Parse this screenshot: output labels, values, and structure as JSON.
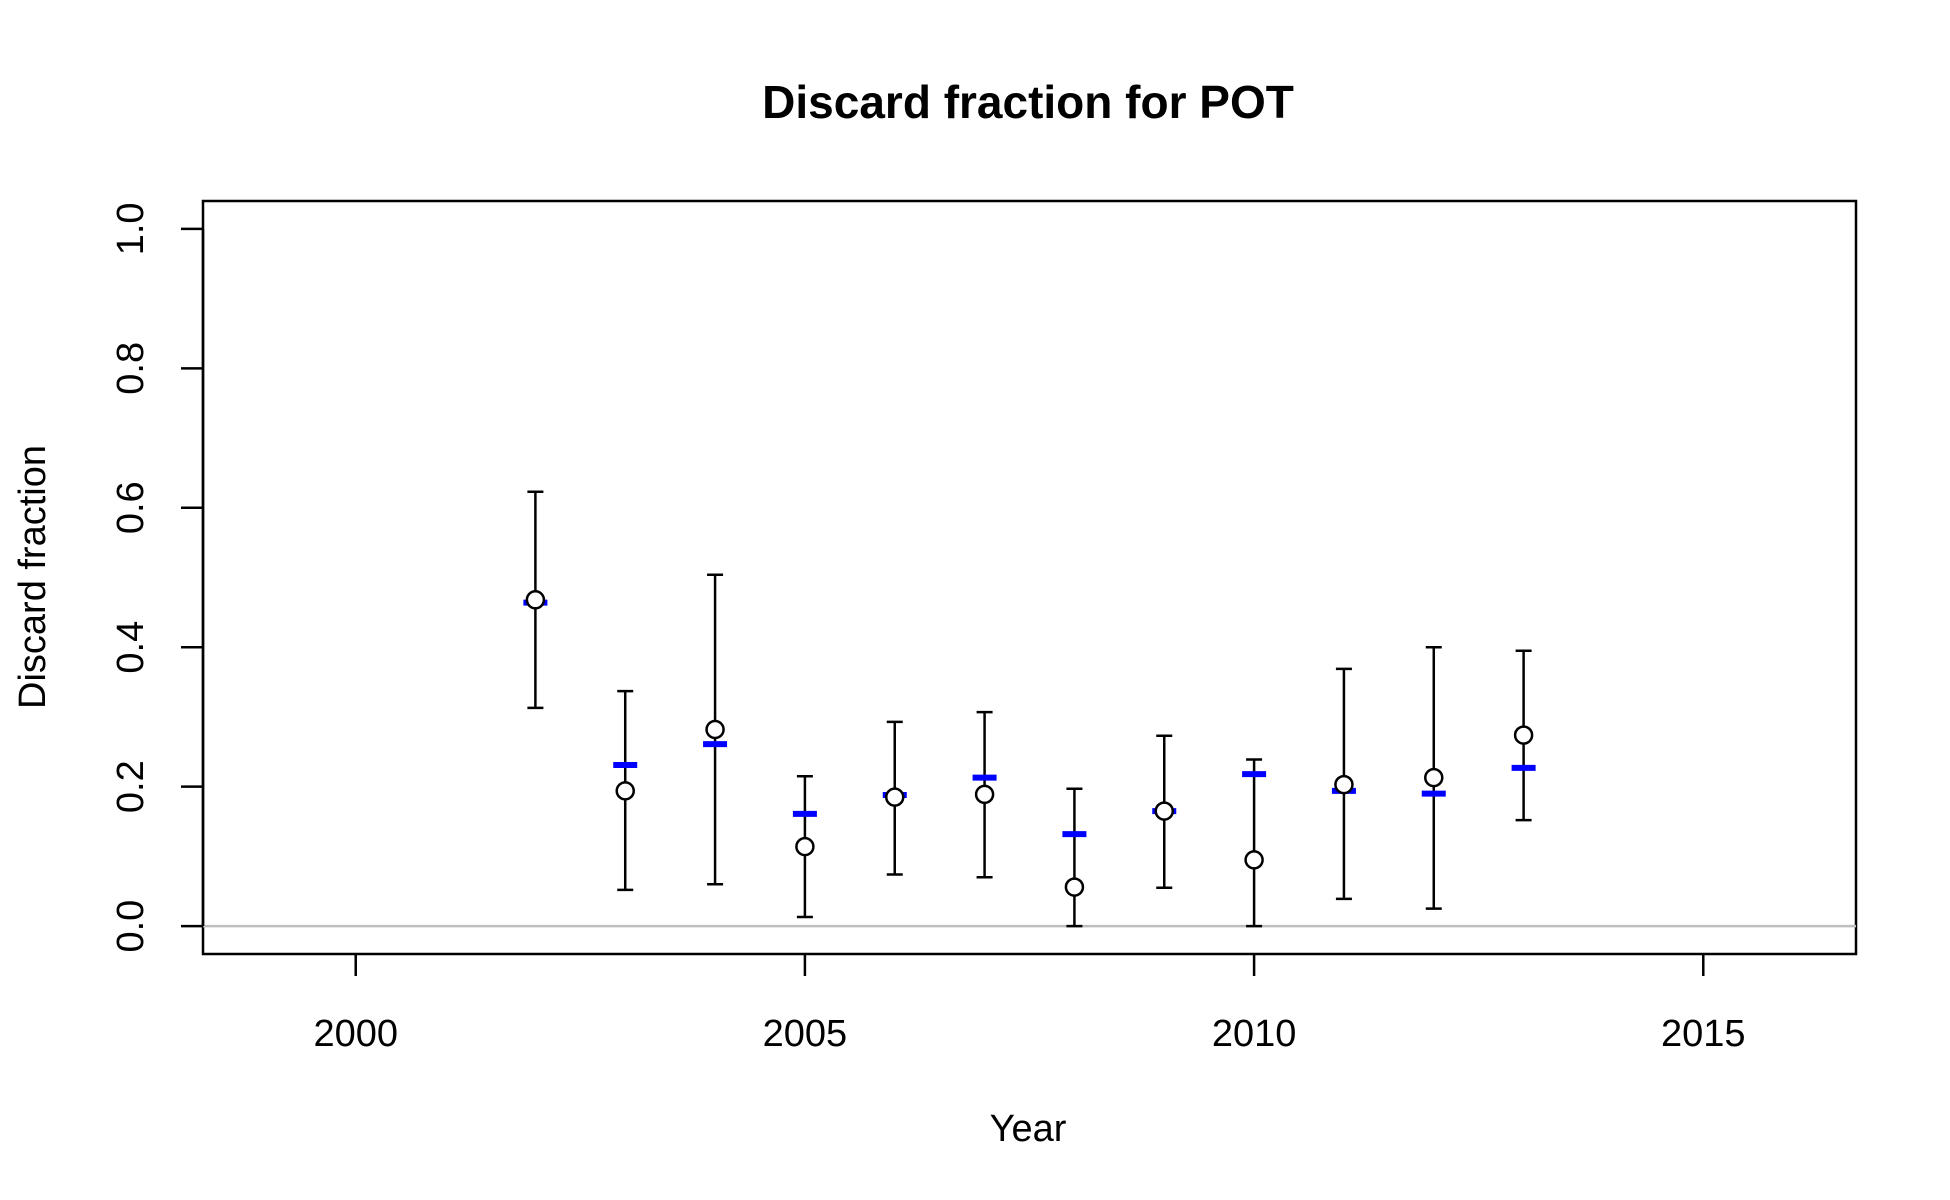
{
  "chart_data": {
    "type": "scatter",
    "title": "Discard fraction for POT",
    "xlabel": "Year",
    "ylabel": "Discard fraction",
    "xlim": [
      1998.3,
      2016.7
    ],
    "ylim": [
      -0.04,
      1.04
    ],
    "xticks": [
      2000,
      2005,
      2010,
      2015
    ],
    "yticks": [
      0.0,
      0.2,
      0.4,
      0.6,
      0.8,
      1.0
    ],
    "xtick_labels": [
      "2000",
      "2005",
      "2010",
      "2015"
    ],
    "ytick_labels": [
      "0.0",
      "0.2",
      "0.4",
      "0.6",
      "0.8",
      "1.0"
    ],
    "reference_line": {
      "y": 0,
      "color": "#bebebe"
    },
    "observed_color": "#000000",
    "expected_color": "#0000ff",
    "years": [
      2002,
      2003,
      2004,
      2005,
      2006,
      2007,
      2008,
      2009,
      2010,
      2011,
      2012,
      2013
    ],
    "series": [
      {
        "kind": "observed_points_with_intervals",
        "values": [
          0.468,
          0.194,
          0.282,
          0.114,
          0.185,
          0.189,
          0.056,
          0.165,
          0.095,
          0.203,
          0.213,
          0.274
        ],
        "lower": [
          0.313,
          0.052,
          0.06,
          0.013,
          0.074,
          0.07,
          0.0,
          0.055,
          0.0,
          0.039,
          0.025,
          0.152
        ],
        "upper": [
          0.623,
          0.337,
          0.504,
          0.215,
          0.293,
          0.307,
          0.197,
          0.273,
          0.239,
          0.369,
          0.4,
          0.395
        ]
      },
      {
        "kind": "expected_dashes",
        "values": [
          0.464,
          0.231,
          0.261,
          0.161,
          0.188,
          0.213,
          0.132,
          0.165,
          0.218,
          0.194,
          0.19,
          0.227
        ]
      }
    ]
  }
}
